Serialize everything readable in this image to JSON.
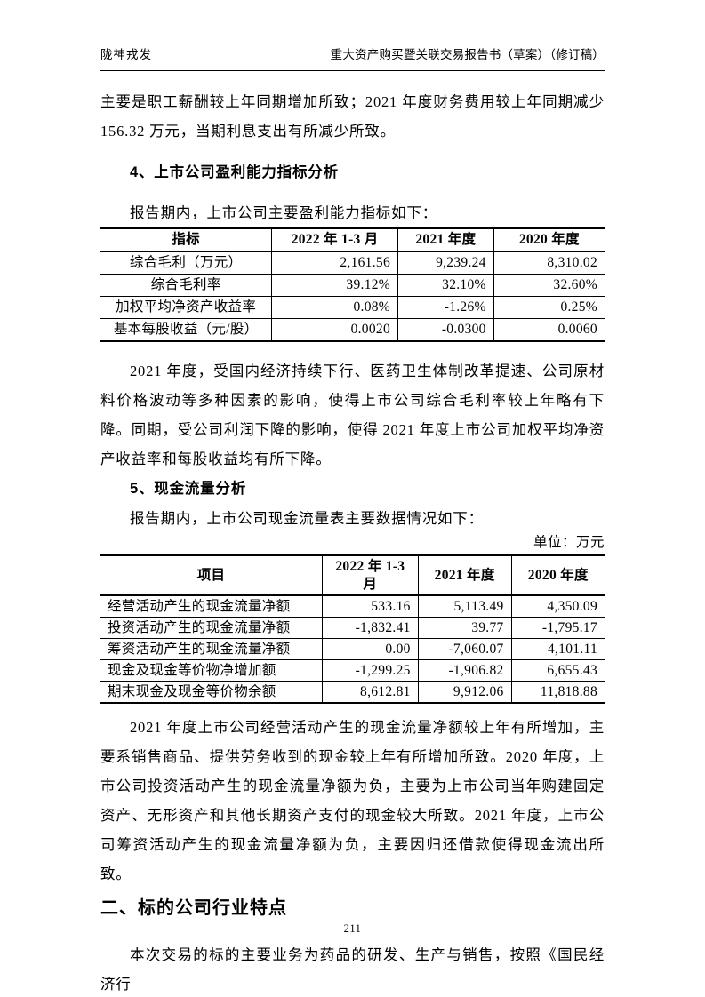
{
  "header": {
    "company": "陇神戎发",
    "doc_title": "重大资产购买暨关联交易报告书（草案）（修订稿）"
  },
  "sections": {
    "carryover_paragraph": "主要是职工薪酬较上年同期增加所致；2021 年度财务费用较上年同期减少 156.32 万元，当期利息支出有所减少所致。",
    "s4": {
      "heading": "4、上市公司盈利能力指标分析",
      "intro": "报告期内，上市公司主要盈利能力指标如下：",
      "table": {
        "headers": [
          "指标",
          "2022 年 1-3 月",
          "2021 年度",
          "2020 年度"
        ],
        "rows": [
          [
            "综合毛利（万元）",
            "2,161.56",
            "9,239.24",
            "8,310.02"
          ],
          [
            "综合毛利率",
            "39.12%",
            "32.10%",
            "32.60%"
          ],
          [
            "加权平均净资产收益率",
            "0.08%",
            "-1.26%",
            "0.25%"
          ],
          [
            "基本每股收益（元/股）",
            "0.0020",
            "-0.0300",
            "0.0060"
          ]
        ]
      },
      "analysis": "2021 年度，受国内经济持续下行、医药卫生体制改革提速、公司原材料价格波动等多种因素的影响，使得上市公司综合毛利率较上年略有下降。同期，受公司利润下降的影响，使得 2021 年度上市公司加权平均净资产收益率和每股收益均有所下降。"
    },
    "s5": {
      "heading": "5、现金流量分析",
      "intro": "报告期内，上市公司现金流量表主要数据情况如下：",
      "unit_label": "单位：万元",
      "table": {
        "headers": [
          "项目",
          "2022 年 1-3 月",
          "2021 年度",
          "2020 年度"
        ],
        "rows": [
          [
            "经营活动产生的现金流量净额",
            "533.16",
            "5,113.49",
            "4,350.09"
          ],
          [
            "投资活动产生的现金流量净额",
            "-1,832.41",
            "39.77",
            "-1,795.17"
          ],
          [
            "筹资活动产生的现金流量净额",
            "0.00",
            "-7,060.07",
            "4,101.11"
          ],
          [
            "现金及现金等价物净增加额",
            "-1,299.25",
            "-1,906.82",
            "6,655.43"
          ],
          [
            "期末现金及现金等价物余额",
            "8,612.81",
            "9,912.06",
            "11,818.88"
          ]
        ]
      },
      "analysis": "2021 年度上市公司经营活动产生的现金流量净额较上年有所增加，主要系销售商品、提供劳务收到的现金较上年有所增加所致。2020 年度，上市公司投资活动产生的现金流量净额为负，主要为上市公司当年购建固定资产、无形资产和其他长期资产支付的现金较大所致。2021 年度，上市公司筹资活动产生的现金流量净额为负，主要因归还借款使得现金流出所致。"
    },
    "major2": {
      "heading": "二、标的公司行业特点",
      "paragraph": "本次交易的标的主要业务为药品的研发、生产与销售，按照《国民经济行"
    }
  },
  "footer": {
    "page_number": "211"
  }
}
